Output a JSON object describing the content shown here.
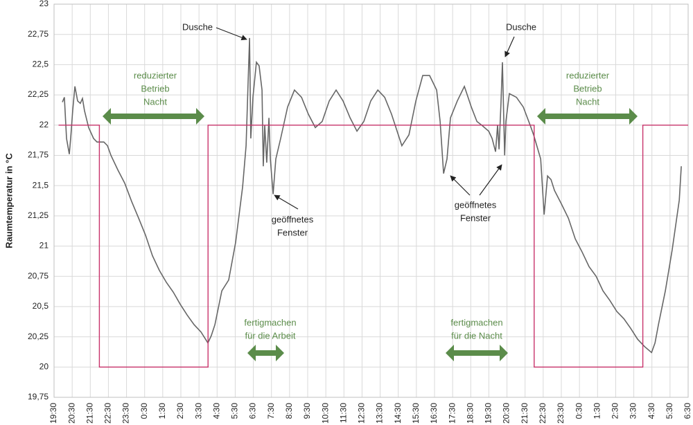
{
  "chart_data": {
    "type": "line",
    "y_label": "Raumtemperatur in °C",
    "xlim": [
      0,
      35
    ],
    "ylim": [
      19.75,
      23
    ],
    "grid": true,
    "xticks": [
      {
        "value": 0,
        "label": "19:30"
      },
      {
        "value": 1,
        "label": "20:30"
      },
      {
        "value": 2,
        "label": "21:30"
      },
      {
        "value": 3,
        "label": "22:30"
      },
      {
        "value": 4,
        "label": "23:30"
      },
      {
        "value": 5,
        "label": "0:30"
      },
      {
        "value": 6,
        "label": "1:30"
      },
      {
        "value": 7,
        "label": "2:30"
      },
      {
        "value": 8,
        "label": "3:30"
      },
      {
        "value": 9,
        "label": "4:30"
      },
      {
        "value": 10,
        "label": "5:30"
      },
      {
        "value": 11,
        "label": "6:30"
      },
      {
        "value": 12,
        "label": "7:30"
      },
      {
        "value": 13,
        "label": "8:30"
      },
      {
        "value": 14,
        "label": "9:30"
      },
      {
        "value": 15,
        "label": "10:30"
      },
      {
        "value": 16,
        "label": "11:30"
      },
      {
        "value": 17,
        "label": "12:30"
      },
      {
        "value": 18,
        "label": "13:30"
      },
      {
        "value": 19,
        "label": "14:30"
      },
      {
        "value": 20,
        "label": "15:30"
      },
      {
        "value": 21,
        "label": "16:30"
      },
      {
        "value": 22,
        "label": "17:30"
      },
      {
        "value": 23,
        "label": "18:30"
      },
      {
        "value": 24,
        "label": "19:30"
      },
      {
        "value": 25,
        "label": "20:30"
      },
      {
        "value": 26,
        "label": "21:30"
      },
      {
        "value": 27,
        "label": "22:30"
      },
      {
        "value": 28,
        "label": "23:30"
      },
      {
        "value": 29,
        "label": "0:30"
      },
      {
        "value": 30,
        "label": "1:30"
      },
      {
        "value": 31,
        "label": "2:30"
      },
      {
        "value": 32,
        "label": "3:30"
      },
      {
        "value": 33,
        "label": "4:30"
      },
      {
        "value": 34,
        "label": "5:30"
      },
      {
        "value": 35,
        "label": "6:30"
      }
    ],
    "yticks": [
      {
        "value": 19.75,
        "label": "19,75"
      },
      20,
      {
        "value": 20.25,
        "label": "20,25"
      },
      {
        "value": 20.5,
        "label": "20,5"
      },
      {
        "value": 20.75,
        "label": "20,75"
      },
      21,
      {
        "value": 21.25,
        "label": "21,25"
      },
      {
        "value": 21.5,
        "label": "21,5"
      },
      {
        "value": 21.75,
        "label": "21,75"
      },
      22,
      {
        "value": 22.25,
        "label": "22,25"
      },
      {
        "value": 22.5,
        "label": "22,5"
      },
      {
        "value": 22.75,
        "label": "22,75"
      },
      23
    ],
    "series": [
      {
        "color": "#666666",
        "x": [
          0.46,
          0.57,
          0.69,
          0.84,
          0.92,
          1.03,
          1.15,
          1.3,
          1.45,
          1.57,
          1.68,
          1.91,
          2.18,
          2.37,
          2.75,
          2.95,
          3.14,
          3.52,
          3.9,
          4.28,
          4.67,
          5.05,
          5.43,
          5.81,
          6.2,
          6.58,
          6.96,
          7.35,
          7.73,
          8.11,
          8.49,
          8.68,
          8.88,
          9.26,
          9.64,
          10.02,
          10.41,
          10.6,
          10.71,
          10.79,
          10.86,
          10.98,
          11.17,
          11.32,
          11.48,
          11.55,
          11.63,
          11.74,
          11.86,
          11.94,
          12.09,
          12.24,
          12.51,
          12.89,
          13.27,
          13.66,
          14.04,
          14.42,
          14.8,
          15.19,
          15.57,
          15.95,
          16.34,
          16.72,
          17.1,
          17.48,
          17.87,
          18.25,
          18.63,
          19.2,
          19.59,
          19.97,
          20.35,
          20.73,
          21.12,
          21.31,
          21.5,
          21.69,
          21.88,
          22.26,
          22.65,
          23.03,
          23.34,
          23.6,
          23.99,
          24.18,
          24.37,
          24.48,
          24.56,
          24.67,
          24.75,
          24.87,
          24.94,
          25.13,
          25.52,
          25.9,
          26.28,
          26.47,
          26.86,
          27.05,
          27.24,
          27.43,
          27.62,
          28.0,
          28.39,
          28.77,
          29.15,
          29.53,
          29.92,
          30.3,
          30.68,
          31.06,
          31.45,
          31.83,
          32.21,
          32.59,
          32.98,
          33.17,
          33.36,
          33.74,
          34.12,
          34.51,
          34.62
        ],
        "values": [
          22.19,
          22.23,
          21.89,
          21.76,
          21.9,
          22.12,
          22.32,
          22.2,
          22.18,
          22.22,
          22.12,
          21.98,
          21.89,
          21.86,
          21.86,
          21.83,
          21.75,
          21.63,
          21.52,
          21.37,
          21.23,
          21.09,
          20.92,
          20.8,
          20.7,
          20.62,
          20.52,
          20.43,
          20.35,
          20.29,
          20.2,
          20.26,
          20.35,
          20.63,
          20.72,
          21.03,
          21.49,
          21.83,
          22.35,
          22.72,
          21.89,
          22.23,
          22.52,
          22.49,
          22.29,
          21.66,
          22.0,
          21.69,
          22.06,
          21.72,
          21.43,
          21.72,
          21.89,
          22.15,
          22.29,
          22.23,
          22.09,
          21.98,
          22.03,
          22.2,
          22.29,
          22.2,
          22.06,
          21.95,
          22.03,
          22.2,
          22.29,
          22.23,
          22.09,
          21.83,
          21.92,
          22.2,
          22.41,
          22.41,
          22.29,
          22.03,
          21.6,
          21.72,
          22.06,
          22.2,
          22.32,
          22.15,
          22.03,
          22.0,
          21.95,
          21.89,
          21.78,
          22.0,
          21.8,
          22.18,
          22.52,
          21.75,
          22.03,
          22.26,
          22.23,
          22.15,
          22.0,
          21.92,
          21.72,
          21.26,
          21.58,
          21.55,
          21.46,
          21.35,
          21.23,
          21.06,
          20.95,
          20.83,
          20.75,
          20.63,
          20.55,
          20.46,
          20.4,
          20.32,
          20.23,
          20.17,
          20.12,
          20.2,
          20.35,
          20.63,
          20.97,
          21.38,
          21.66
        ]
      },
      {
        "color": "#c8336b",
        "x": [
          0.25,
          2.5,
          2.5,
          8.5,
          8.5,
          26.5,
          26.5,
          32.5,
          32.5,
          35
        ],
        "values": [
          22,
          22,
          20,
          20,
          22,
          22,
          20,
          20,
          22,
          22
        ]
      }
    ],
    "annotations": [
      {
        "lines": [
          "Dusche"
        ]
      },
      {
        "lines": [
          "Dusche"
        ]
      },
      {
        "lines": [
          "geöffnetes",
          "Fenster"
        ]
      },
      {
        "lines": [
          "geöffnetes",
          "Fenster"
        ]
      },
      {
        "lines": [
          "reduzierter",
          "Betrieb",
          "Nacht"
        ]
      },
      {
        "lines": [
          "reduzierter",
          "Betrieb",
          "Nacht"
        ]
      },
      {
        "lines": [
          "fertigmachen",
          "für die Arbeit"
        ]
      },
      {
        "lines": [
          "fertigmachen",
          "für die Nacht"
        ]
      }
    ]
  }
}
